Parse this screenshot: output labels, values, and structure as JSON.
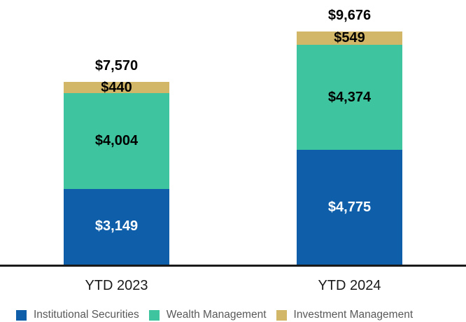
{
  "chart_data": {
    "type": "bar",
    "stacked": true,
    "title": "",
    "xlabel": "",
    "ylabel": "",
    "grid": false,
    "legend_position": "bottom",
    "axis_color": "#1a1a1a",
    "background_color": "#ffffff",
    "categories": [
      "YTD 2023",
      "YTD 2024"
    ],
    "series": [
      {
        "name": "Institutional Securities",
        "color": "#0e5ea9",
        "values": [
          3149,
          4775
        ],
        "value_labels": [
          "$3,149",
          "$4,775"
        ],
        "label_color": "#ffffff"
      },
      {
        "name": "Wealth Management",
        "color": "#3ec49e",
        "values": [
          4004,
          4374
        ],
        "value_labels": [
          "$4,004",
          "$4,374"
        ],
        "label_color": "#000000"
      },
      {
        "name": "Investment Management",
        "color": "#d3b768",
        "values": [
          440,
          549
        ],
        "value_labels": [
          "$440",
          "$549"
        ],
        "label_color": "#000000"
      }
    ],
    "totals": [
      7570,
      9676
    ],
    "total_labels": [
      "$7,570",
      "$9,676"
    ],
    "ylim": [
      0,
      9676
    ]
  }
}
